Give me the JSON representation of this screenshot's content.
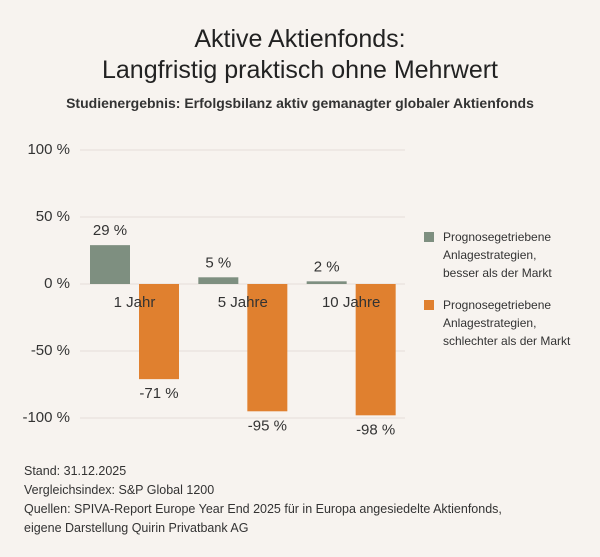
{
  "chart_data": {
    "type": "bar",
    "title": "Aktive Aktienfonds:\nLangfristig praktisch ohne Mehrwert",
    "subtitle": "Studienergebnis: Erfolgsbilanz aktiv gemanagter globaler Aktienfonds",
    "categories": [
      "1 Jahr",
      "5 Jahre",
      "10 Jahre"
    ],
    "series": [
      {
        "name": "Prognosegetriebene\nAnlagestrategien,\nbesser als der Markt",
        "color": "#7e8f80",
        "values": [
          29,
          5,
          2
        ],
        "value_labels": [
          "29 %",
          "5 %",
          "2 %"
        ]
      },
      {
        "name": "Prognosegetriebene\nAnlagestrategien,\nschlechter als der Markt",
        "color": "#e0802f",
        "values": [
          -71,
          -95,
          -98
        ],
        "value_labels": [
          "-71 %",
          "-95 %",
          "-98 %"
        ]
      }
    ],
    "ylim": [
      -100,
      100
    ],
    "yticks": [
      {
        "value": 100,
        "label": "100 %"
      },
      {
        "value": 50,
        "label": "50 %"
      },
      {
        "value": 0,
        "label": "0 %"
      },
      {
        "value": -50,
        "label": "-50 %"
      },
      {
        "value": -100,
        "label": "-100 %"
      }
    ],
    "grid": true,
    "legend": "right",
    "notes": [
      "Stand: 31.12.2025",
      "Vergleichsindex: S&P Global 1200",
      "Quellen: SPIVA-Report Europe Year End 2025 für in Europa angesiedelte Aktienfonds,\neigene Darstellung Quirin Privatbank AG"
    ]
  }
}
